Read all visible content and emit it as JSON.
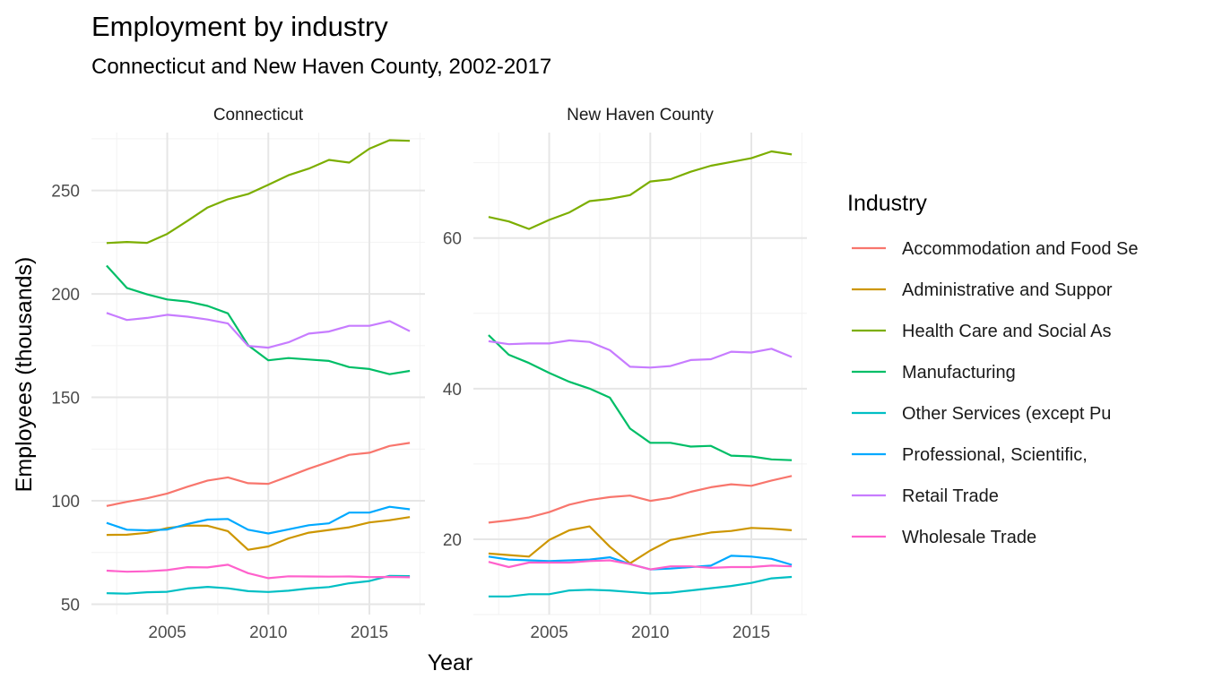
{
  "chart_data": {
    "type": "line",
    "title": "Employment by industry",
    "subtitle": "Connecticut and New Haven County, 2002-2017",
    "xlabel": "Year",
    "ylabel": "Employees (thousands)",
    "legend_title": "Industry",
    "legend_position": "right",
    "grid": true,
    "x": [
      2002,
      2003,
      2004,
      2005,
      2006,
      2007,
      2008,
      2009,
      2010,
      2011,
      2012,
      2013,
      2014,
      2015,
      2016,
      2017
    ],
    "industries": [
      {
        "name": "Accommodation and Food Se",
        "color": "#F8766D"
      },
      {
        "name": "Administrative and Suppor",
        "color": "#CD9600"
      },
      {
        "name": "Health Care and Social As",
        "color": "#7CAE00"
      },
      {
        "name": "Manufacturing",
        "color": "#00BE67"
      },
      {
        "name": "Other Services (except Pu",
        "color": "#00BFC4"
      },
      {
        "name": "Professional, Scientific,",
        "color": "#00A9FF"
      },
      {
        "name": "Retail Trade",
        "color": "#C77CFF"
      },
      {
        "name": "Wholesale Trade",
        "color": "#FF61CC"
      }
    ],
    "panels": [
      {
        "facet": "Connecticut",
        "ylim": [
          45,
          278
        ],
        "yticks": [
          50,
          100,
          150,
          200,
          250
        ],
        "xticks": [
          2005,
          2010,
          2015
        ],
        "series": [
          {
            "name": "Accommodation and Food Se",
            "values": [
              97.5,
              99.5,
              101.2,
              103.5,
              106.8,
              109.8,
              111.3,
              108.5,
              108.2,
              111.8,
              115.5,
              118.8,
              122.2,
              123.2,
              126.5,
              128.0
            ]
          },
          {
            "name": "Administrative and Suppor",
            "values": [
              83.5,
              83.6,
              84.5,
              86.8,
              88.0,
              87.9,
              85.3,
              76.3,
              77.9,
              81.8,
              84.6,
              85.9,
              87.2,
              89.5,
              90.6,
              92.1
            ]
          },
          {
            "name": "Health Care and Social As",
            "values": [
              224.6,
              225.1,
              224.7,
              229.0,
              235.3,
              241.8,
              245.8,
              248.3,
              252.8,
              257.4,
              260.6,
              264.8,
              263.5,
              270.2,
              274.3,
              274.0
            ]
          },
          {
            "name": "Manufacturing",
            "values": [
              213.7,
              202.9,
              199.8,
              197.3,
              196.3,
              194.2,
              190.6,
              175.2,
              167.9,
              169.0,
              168.3,
              167.6,
              164.6,
              163.7,
              161.2,
              162.8
            ]
          },
          {
            "name": "Other Services (except Pu",
            "values": [
              55.3,
              55.1,
              55.8,
              56.0,
              57.6,
              58.4,
              57.7,
              56.3,
              55.9,
              56.5,
              57.6,
              58.3,
              60.1,
              61.2,
              63.7,
              63.6
            ]
          },
          {
            "name": "Professional, Scientific,",
            "values": [
              89.3,
              86.0,
              85.7,
              86.1,
              88.8,
              90.9,
              91.2,
              86.0,
              84.2,
              86.2,
              88.2,
              89.1,
              94.3,
              94.3,
              97.1,
              95.9
            ]
          },
          {
            "name": "Retail Trade",
            "values": [
              190.8,
              187.4,
              188.4,
              189.9,
              189.0,
              187.6,
              185.7,
              174.9,
              174.0,
              176.6,
              180.8,
              181.8,
              184.6,
              184.6,
              186.9,
              182.0
            ]
          },
          {
            "name": "Wholesale Trade",
            "values": [
              66.2,
              65.7,
              65.9,
              66.5,
              67.9,
              67.8,
              69.1,
              65.0,
              62.6,
              63.5,
              63.4,
              63.3,
              63.4,
              63.1,
              63.2,
              63.0
            ]
          }
        ]
      },
      {
        "facet": "New Haven County",
        "ylim": [
          10,
          74
        ],
        "yticks": [
          20,
          40,
          60
        ],
        "xticks": [
          2005,
          2010,
          2015
        ],
        "series": [
          {
            "name": "Accommodation and Food Se",
            "values": [
              22.2,
              22.5,
              22.9,
              23.6,
              24.6,
              25.2,
              25.6,
              25.8,
              25.1,
              25.5,
              26.3,
              26.9,
              27.3,
              27.1,
              27.8,
              28.4
            ]
          },
          {
            "name": "Administrative and Suppor",
            "values": [
              18.1,
              17.9,
              17.7,
              19.9,
              21.2,
              21.7,
              19.0,
              16.8,
              18.5,
              19.9,
              20.4,
              20.9,
              21.1,
              21.5,
              21.4,
              21.2
            ]
          },
          {
            "name": "Health Care and Social As",
            "values": [
              62.8,
              62.2,
              61.2,
              62.4,
              63.4,
              64.9,
              65.2,
              65.7,
              67.5,
              67.8,
              68.8,
              69.6,
              70.1,
              70.6,
              71.5,
              71.1
            ]
          },
          {
            "name": "Manufacturing",
            "values": [
              47.1,
              44.5,
              43.4,
              42.1,
              40.9,
              40.0,
              38.8,
              34.7,
              32.8,
              32.8,
              32.3,
              32.4,
              31.1,
              31.0,
              30.6,
              30.5
            ]
          },
          {
            "name": "Other Services (except Pu",
            "values": [
              12.4,
              12.4,
              12.7,
              12.7,
              13.2,
              13.3,
              13.2,
              13.0,
              12.8,
              12.9,
              13.2,
              13.5,
              13.8,
              14.2,
              14.8,
              15.0
            ]
          },
          {
            "name": "Professional, Scientific,",
            "values": [
              17.7,
              17.3,
              17.2,
              17.1,
              17.2,
              17.3,
              17.6,
              16.7,
              16.0,
              16.1,
              16.3,
              16.5,
              17.8,
              17.7,
              17.4,
              16.6
            ]
          },
          {
            "name": "Retail Trade",
            "values": [
              46.3,
              45.9,
              46.0,
              46.0,
              46.4,
              46.2,
              45.1,
              42.9,
              42.8,
              43.0,
              43.8,
              43.9,
              44.9,
              44.8,
              45.3,
              44.2
            ]
          },
          {
            "name": "Wholesale Trade",
            "values": [
              17.0,
              16.3,
              16.9,
              16.9,
              16.9,
              17.1,
              17.2,
              16.7,
              16.0,
              16.4,
              16.4,
              16.2,
              16.3,
              16.3,
              16.5,
              16.4
            ]
          }
        ]
      }
    ]
  }
}
